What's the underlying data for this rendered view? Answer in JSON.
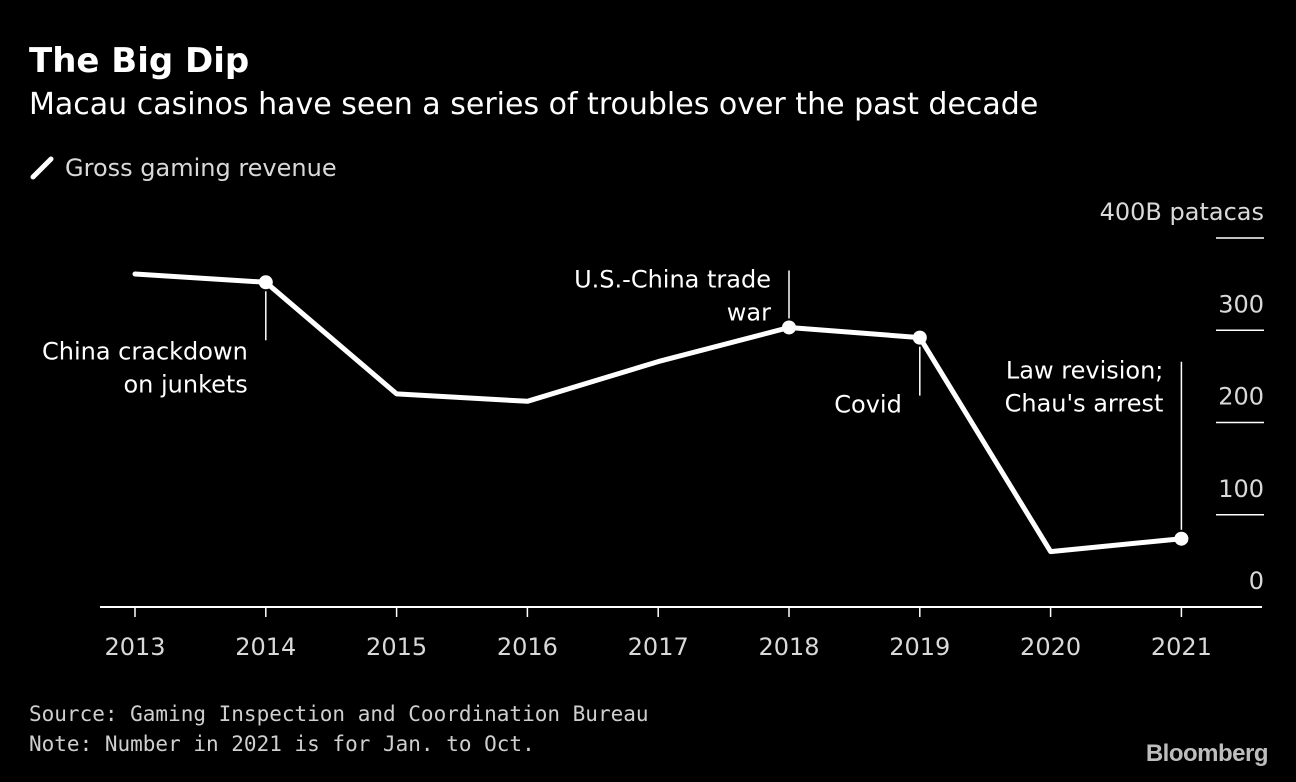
{
  "header": {
    "title": "The Big Dip",
    "subtitle": "Macau casinos have seen a series of troubles over the past decade"
  },
  "footer": {
    "source": "Source: Gaming Inspection and Coordination Bureau",
    "note": "Note: Number in 2021 is for Jan. to Oct.",
    "brand": "Bloomberg"
  },
  "colors": {
    "background": "#000000",
    "line": "#ffffff",
    "axis": "#ffffff",
    "text": "#ffffff",
    "muted_text": "#d9d9d9"
  },
  "chart_data": {
    "type": "line",
    "title": "The Big Dip",
    "subtitle": "Macau casinos have seen a series of troubles over the past decade",
    "x": [
      "2013",
      "2014",
      "2015",
      "2016",
      "2017",
      "2018",
      "2019",
      "2020",
      "2021"
    ],
    "series": [
      {
        "name": "Gross gaming revenue",
        "values": [
          361,
          352,
          231,
          223,
          266,
          303,
          292,
          60,
          74
        ]
      }
    ],
    "y_unit_label": "400B patacas",
    "yticks": [
      "0",
      "100",
      "200",
      "300",
      "400B patacas"
    ],
    "ylim": [
      0,
      400
    ],
    "grid": false,
    "legend_position": "top-left",
    "y_axis_side": "right",
    "annotations": [
      {
        "year": "2014",
        "lines": [
          "China crackdown",
          "on junkets"
        ],
        "placement": "below"
      },
      {
        "year": "2018",
        "lines": [
          "U.S.-China trade",
          "war"
        ],
        "placement": "above"
      },
      {
        "year": "2019",
        "lines": [
          "Covid"
        ],
        "placement": "below"
      },
      {
        "year": "2021",
        "lines": [
          "Law revision;",
          "Chau's arrest"
        ],
        "placement": "above"
      }
    ]
  }
}
